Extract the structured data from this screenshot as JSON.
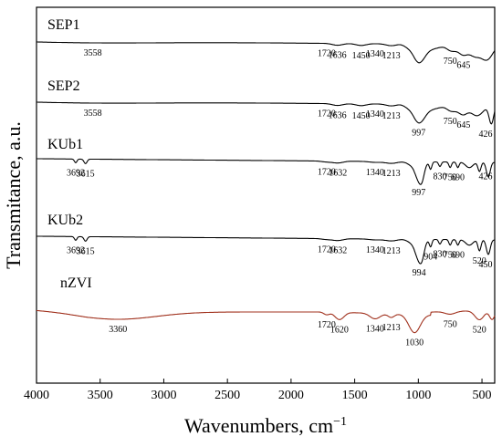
{
  "chart_data": {
    "type": "line",
    "xlabel": "Wavenumbers, cm",
    "xlabel_sup": "−1",
    "ylabel": "Transmitance, a.u.",
    "xlim": [
      4000,
      400
    ],
    "x_reversed": true,
    "xticks": [
      4000,
      3500,
      3000,
      2500,
      2000,
      1500,
      1000,
      500
    ],
    "yticks_shown": false,
    "grid": false,
    "legend": "none",
    "series": [
      {
        "name": "SEP1",
        "color": "#000000",
        "annotations": [
          {
            "x": 3558,
            "label": "3558"
          },
          {
            "x": 1720,
            "label": "1720"
          },
          {
            "x": 1636,
            "label": "1636"
          },
          {
            "x": 1450,
            "label": "1450"
          },
          {
            "x": 1340,
            "label": "1340"
          },
          {
            "x": 1213,
            "label": "1213"
          },
          {
            "x": 750,
            "label": "750"
          },
          {
            "x": 645,
            "label": "645"
          }
        ]
      },
      {
        "name": "SEP2",
        "color": "#000000",
        "annotations": [
          {
            "x": 3558,
            "label": "3558"
          },
          {
            "x": 1720,
            "label": "1720"
          },
          {
            "x": 1636,
            "label": "1636"
          },
          {
            "x": 1450,
            "label": "1450"
          },
          {
            "x": 1340,
            "label": "1340"
          },
          {
            "x": 1213,
            "label": "1213"
          },
          {
            "x": 997,
            "label": "997"
          },
          {
            "x": 750,
            "label": "750"
          },
          {
            "x": 645,
            "label": "645"
          },
          {
            "x": 426,
            "label": "426"
          }
        ]
      },
      {
        "name": "KUb1",
        "color": "#000000",
        "annotations": [
          {
            "x": 3692,
            "label": "3692"
          },
          {
            "x": 3615,
            "label": "3615"
          },
          {
            "x": 1720,
            "label": "1720"
          },
          {
            "x": 1632,
            "label": "1632"
          },
          {
            "x": 1340,
            "label": "1340"
          },
          {
            "x": 1213,
            "label": "1213"
          },
          {
            "x": 997,
            "label": "997"
          },
          {
            "x": 830,
            "label": "830"
          },
          {
            "x": 750,
            "label": "750"
          },
          {
            "x": 690,
            "label": "690"
          },
          {
            "x": 426,
            "label": "426"
          }
        ]
      },
      {
        "name": "KUb2",
        "color": "#000000",
        "annotations": [
          {
            "x": 3692,
            "label": "3692"
          },
          {
            "x": 3615,
            "label": "3615"
          },
          {
            "x": 1720,
            "label": "1720"
          },
          {
            "x": 1632,
            "label": "1632"
          },
          {
            "x": 1340,
            "label": "1340"
          },
          {
            "x": 1213,
            "label": "1213"
          },
          {
            "x": 994,
            "label": "994"
          },
          {
            "x": 904,
            "label": "904"
          },
          {
            "x": 830,
            "label": "830"
          },
          {
            "x": 750,
            "label": "750"
          },
          {
            "x": 690,
            "label": "690"
          },
          {
            "x": 520,
            "label": "520"
          },
          {
            "x": 450,
            "label": "450"
          }
        ]
      },
      {
        "name": "nZVI",
        "color": "#a0301c",
        "annotations": [
          {
            "x": 3360,
            "label": "3360"
          },
          {
            "x": 1720,
            "label": "1720"
          },
          {
            "x": 1620,
            "label": "1620"
          },
          {
            "x": 1340,
            "label": "1340"
          },
          {
            "x": 1213,
            "label": "1213"
          },
          {
            "x": 1030,
            "label": "1030"
          },
          {
            "x": 750,
            "label": "750"
          },
          {
            "x": 520,
            "label": "520"
          }
        ]
      }
    ]
  }
}
